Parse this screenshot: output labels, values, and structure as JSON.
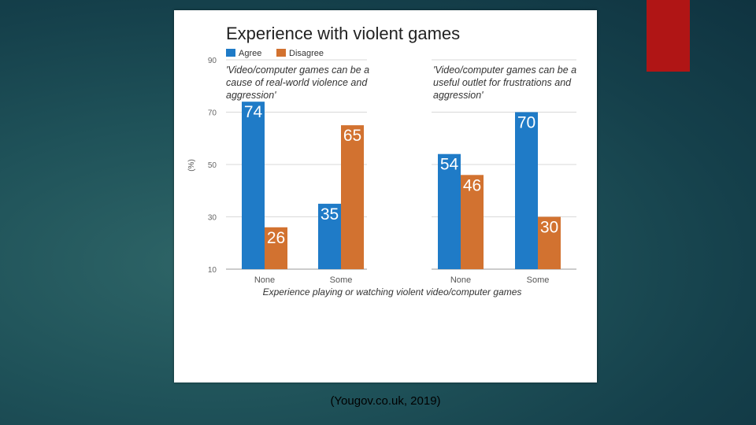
{
  "colors": {
    "agree": "#1f7bc7",
    "disagree": "#d27230",
    "accent": "#b01515"
  },
  "chart_data": {
    "type": "bar",
    "title": "Experience with violent games",
    "legend": {
      "placement": "top-left",
      "entries": [
        "Agree",
        "Disagree"
      ]
    },
    "ylabel": "(%)",
    "xlabel": "Experience playing or watching violent video/computer games",
    "yticks": [
      10,
      30,
      50,
      70,
      90
    ],
    "ylim": [
      10,
      90
    ],
    "grid": true,
    "panels": [
      {
        "subtitle": [
          "'Video/computer games can be a",
          "cause of real-world violence and",
          "aggression'"
        ],
        "categories": [
          "None",
          "Some"
        ],
        "series": [
          {
            "name": "Agree",
            "values": [
              74,
              35
            ]
          },
          {
            "name": "Disagree",
            "values": [
              26,
              65
            ]
          }
        ]
      },
      {
        "subtitle": [
          "'Video/computer games can be a",
          "useful outlet for frustrations and",
          "aggression'"
        ],
        "categories": [
          "None",
          "Some"
        ],
        "series": [
          {
            "name": "Agree",
            "values": [
              54,
              70
            ]
          },
          {
            "name": "Disagree",
            "values": [
              46,
              30
            ]
          }
        ]
      }
    ]
  },
  "caption": "(Yougov.co.uk, 2019)"
}
